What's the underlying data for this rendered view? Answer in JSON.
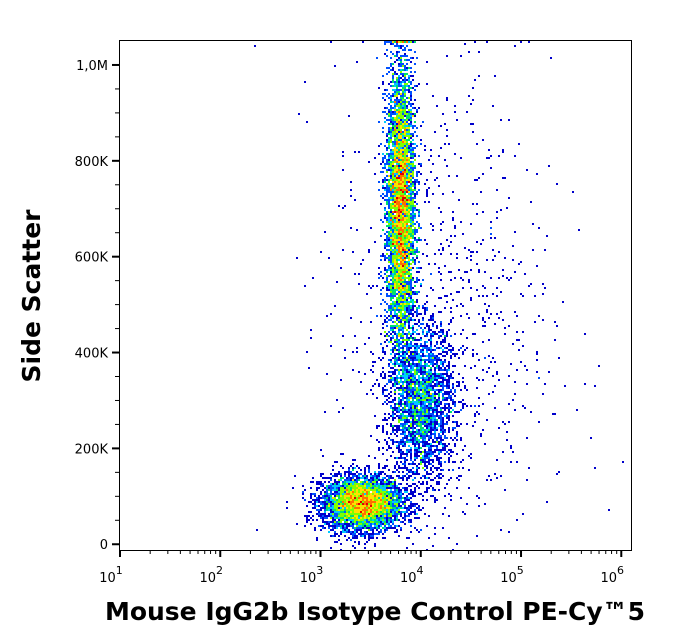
{
  "chart_data": {
    "type": "scatter",
    "subtype": "flow-cytometry density dot plot",
    "xlabel": "Mouse IgG2b Isotype Control PE-Cy™5",
    "ylabel": "Side Scatter",
    "x_scale": "log",
    "xlim": [
      10,
      1250000
    ],
    "ylim": [
      -12000,
      1050000
    ],
    "x_ticks": [
      {
        "value": 10,
        "base": "10",
        "exp": "1"
      },
      {
        "value": 100,
        "base": "10",
        "exp": "2"
      },
      {
        "value": 1000,
        "base": "10",
        "exp": "3"
      },
      {
        "value": 10000,
        "base": "10",
        "exp": "4"
      },
      {
        "value": 100000,
        "base": "10",
        "exp": "5"
      },
      {
        "value": 1000000,
        "base": "10",
        "exp": "6"
      }
    ],
    "y_ticks": [
      {
        "value": 0,
        "label": "0"
      },
      {
        "value": 200000,
        "label": "200K"
      },
      {
        "value": 400000,
        "label": "400K"
      },
      {
        "value": 600000,
        "label": "600K"
      },
      {
        "value": 800000,
        "label": "800K"
      },
      {
        "value": 1000000,
        "label": "1,0M"
      }
    ],
    "colormap": [
      "#0000cc",
      "#0050ff",
      "#00c8ff",
      "#00e070",
      "#80ff00",
      "#ffe000",
      "#ff7000",
      "#e00000"
    ],
    "populations": [
      {
        "name": "low-SSC cluster",
        "center_log10_x": 3.42,
        "center_y": 85000,
        "sd_log10_x": 0.2,
        "sd_y": 28000,
        "events": 5000
      },
      {
        "name": "high-SSC vertical cluster",
        "center_log10_x": 3.8,
        "center_y": 700000,
        "sd_log10_x": 0.07,
        "sd_y": 150000,
        "events": 9000
      },
      {
        "name": "mid-SSC spread",
        "center_log10_x": 4.0,
        "center_y": 300000,
        "sd_log10_x": 0.16,
        "sd_y": 80000,
        "events": 3000
      },
      {
        "name": "sparse background",
        "center_log10_x": 4.2,
        "center_y": 450000,
        "sd_log10_x": 0.55,
        "sd_y": 280000,
        "events": 900
      }
    ]
  }
}
